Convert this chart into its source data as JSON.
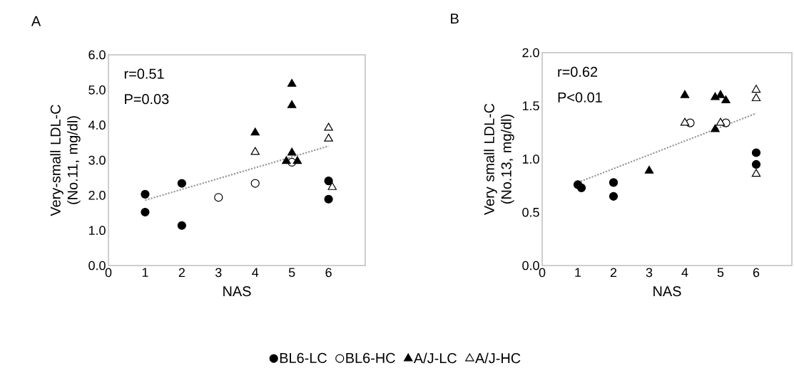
{
  "chart_data": [
    {
      "type": "scatter",
      "title": "A",
      "xlabel": "NAS",
      "ylabel": "Very-small LDL-C (No.11, mg/dl)",
      "annotations": [
        "r=0.51",
        "P=0.03"
      ],
      "xlim": [
        0,
        7
      ],
      "xticks": [
        0,
        1,
        2,
        3,
        4,
        5,
        6
      ],
      "ylim": [
        0,
        6
      ],
      "yticks": [
        {
          "value": 0,
          "label": "0.0"
        },
        {
          "value": 1,
          "label": "1.0"
        },
        {
          "value": 2,
          "label": "2.0"
        },
        {
          "value": 3,
          "label": "3.0"
        },
        {
          "value": 4,
          "label": "4.0"
        },
        {
          "value": 5,
          "label": "5.0"
        },
        {
          "value": 6,
          "label": "6.0"
        }
      ],
      "legend": "bottom",
      "series": [
        {
          "name": "BL6-LC",
          "color": "#000000",
          "marker": "circle",
          "x": [
            1,
            1,
            2,
            2,
            6,
            6
          ],
          "values": [
            2.03,
            1.52,
            2.34,
            1.14,
            2.41,
            1.89
          ]
        },
        {
          "name": "BL6-HC",
          "color": "#ffffff",
          "marker": "circle",
          "x": [
            3,
            4,
            5
          ],
          "values": [
            1.94,
            2.34,
            2.94
          ]
        },
        {
          "name": "A/J-LC",
          "color": "#000000",
          "marker": "triangle",
          "x": [
            4,
            5,
            5,
            5,
            4.85,
            5.15
          ],
          "values": [
            3.78,
            5.17,
            4.56,
            3.21,
            2.97,
            2.97
          ]
        },
        {
          "name": "A/J-HC",
          "color": "#ffffff",
          "marker": "triangle",
          "x": [
            4,
            6,
            6,
            6.1
          ],
          "values": [
            3.23,
            3.92,
            3.61,
            2.23
          ]
        },
        {
          "type": "line",
          "color": "#999999",
          "marker": "none",
          "line_style": "dotted",
          "x": [
            1,
            6
          ],
          "values": [
            1.86,
            3.4
          ]
        }
      ]
    },
    {
      "type": "scatter",
      "title": "B",
      "xlabel": "NAS",
      "ylabel": "Very small LDL-C (No.13, mg/dl)",
      "annotations": [
        "r=0.62",
        "P<0.01"
      ],
      "xlim": [
        0,
        7
      ],
      "xticks": [
        0,
        1,
        2,
        3,
        4,
        5,
        6
      ],
      "ylim": [
        0,
        2
      ],
      "yticks": [
        {
          "value": 0,
          "label": "0.0"
        },
        {
          "value": 0.5,
          "label": "0.5"
        },
        {
          "value": 1,
          "label": "1.0"
        },
        {
          "value": 1.5,
          "label": "1.5"
        },
        {
          "value": 2,
          "label": "2.0"
        }
      ],
      "series": [
        {
          "color": "#000000",
          "marker": "circle",
          "x": [
            1,
            1.1,
            2,
            2,
            6,
            6
          ],
          "values": [
            0.76,
            0.73,
            0.78,
            0.65,
            1.06,
            0.95
          ]
        },
        {
          "color": "#ffffff",
          "marker": "circle",
          "x": [
            4.15,
            5.15
          ],
          "values": [
            1.34,
            1.34
          ]
        },
        {
          "color": "#000000",
          "marker": "triangle",
          "x": [
            3,
            4,
            4.85,
            5,
            5.15,
            4.85
          ],
          "values": [
            0.89,
            1.6,
            1.58,
            1.6,
            1.55,
            1.28
          ]
        },
        {
          "color": "#ffffff",
          "marker": "triangle",
          "x": [
            4,
            5,
            6,
            6,
            6
          ],
          "values": [
            1.34,
            1.34,
            1.65,
            1.57,
            0.86
          ]
        },
        {
          "type": "line",
          "color": "#999999",
          "marker": "none",
          "line_style": "dotted",
          "x": [
            1,
            6
          ],
          "values": [
            0.78,
            1.43
          ]
        }
      ]
    }
  ]
}
